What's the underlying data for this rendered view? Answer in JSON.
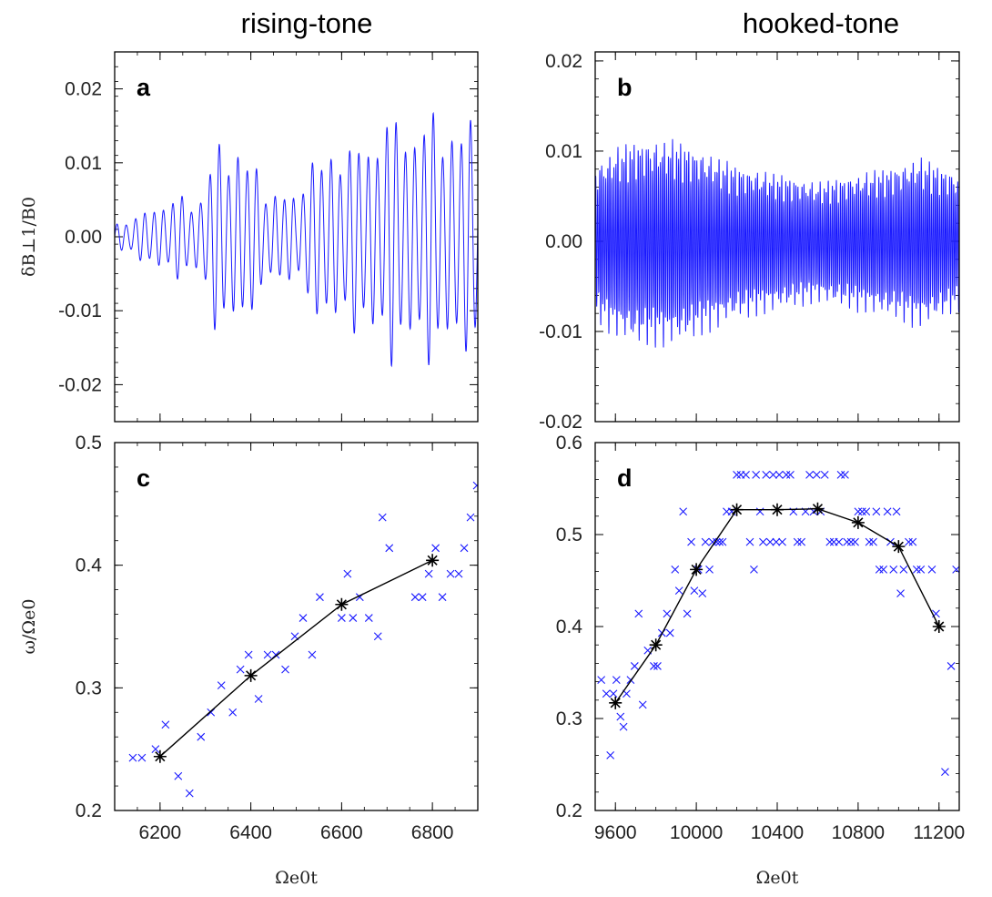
{
  "column_titles": [
    "rising-tone",
    "hooked-tone"
  ],
  "colors": {
    "series": "#1a1aff",
    "mean": "#000000"
  },
  "chart_data": [
    {
      "id": "a",
      "type": "line",
      "letter": "a",
      "column_title": "rising-tone",
      "xlim": [
        6100,
        6900
      ],
      "ylim": [
        -0.025,
        0.025
      ],
      "yticks": [
        -0.02,
        -0.01,
        0.0,
        0.01,
        0.02
      ],
      "ytick_labels": [
        "-0.02",
        "-0.01",
        "0.00",
        "0.01",
        "0.02"
      ],
      "ylabel": "δB⊥1/B0",
      "waveform_envelope": [
        [
          6100,
          0.002
        ],
        [
          6150,
          0.003
        ],
        [
          6200,
          0.005
        ],
        [
          6250,
          0.006
        ],
        [
          6270,
          0.005
        ],
        [
          6290,
          0.006
        ],
        [
          6320,
          0.013
        ],
        [
          6360,
          0.014
        ],
        [
          6400,
          0.011
        ],
        [
          6430,
          0.008
        ],
        [
          6460,
          0.006
        ],
        [
          6490,
          0.007
        ],
        [
          6500,
          0.004
        ],
        [
          6520,
          0.012
        ],
        [
          6560,
          0.011
        ],
        [
          6600,
          0.014
        ],
        [
          6650,
          0.013
        ],
        [
          6700,
          0.018
        ],
        [
          6750,
          0.016
        ],
        [
          6800,
          0.018
        ],
        [
          6850,
          0.016
        ],
        [
          6900,
          0.017
        ]
      ],
      "waveform_period": 20.5
    },
    {
      "id": "b",
      "type": "line",
      "letter": "b",
      "column_title": "hooked-tone",
      "xlim": [
        9500,
        11300
      ],
      "ylim": [
        -0.02,
        0.021
      ],
      "yticks": [
        -0.02,
        -0.01,
        0.0,
        0.01,
        0.02
      ],
      "ytick_labels": [
        "-0.02",
        "-0.01",
        "0.00",
        "0.01",
        "0.02"
      ],
      "ylabel": "",
      "waveform_envelope": [
        [
          9500,
          0.009
        ],
        [
          9600,
          0.011
        ],
        [
          9700,
          0.012
        ],
        [
          9800,
          0.012
        ],
        [
          9900,
          0.012
        ],
        [
          10000,
          0.011
        ],
        [
          10200,
          0.009
        ],
        [
          10400,
          0.008
        ],
        [
          10600,
          0.007
        ],
        [
          10800,
          0.008
        ],
        [
          11000,
          0.009
        ],
        [
          11100,
          0.01
        ],
        [
          11200,
          0.009
        ],
        [
          11300,
          0.008
        ]
      ],
      "waveform_period": 10
    },
    {
      "id": "c",
      "type": "scatter",
      "letter": "c",
      "xlim": [
        6100,
        6900
      ],
      "ylim": [
        0.2,
        0.5
      ],
      "xticks": [
        6200,
        6400,
        6600,
        6800
      ],
      "xtick_labels": [
        "6200",
        "6400",
        "6600",
        "6800"
      ],
      "yticks": [
        0.2,
        0.3,
        0.4,
        0.5
      ],
      "ytick_labels": [
        "0.2",
        "0.3",
        "0.4",
        "0.5"
      ],
      "xlabel": "Ωe0t",
      "ylabel": "ω/Ωe0",
      "scatter_points": [
        [
          6140,
          0.243
        ],
        [
          6160,
          0.243
        ],
        [
          6190,
          0.25
        ],
        [
          6212,
          0.27
        ],
        [
          6240,
          0.228
        ],
        [
          6265,
          0.214
        ],
        [
          6290,
          0.26
        ],
        [
          6312,
          0.28
        ],
        [
          6335,
          0.302
        ],
        [
          6360,
          0.28
        ],
        [
          6377,
          0.315
        ],
        [
          6395,
          0.327
        ],
        [
          6417,
          0.291
        ],
        [
          6437,
          0.327
        ],
        [
          6455,
          0.327
        ],
        [
          6476,
          0.315
        ],
        [
          6497,
          0.342
        ],
        [
          6515,
          0.357
        ],
        [
          6535,
          0.327
        ],
        [
          6552,
          0.374
        ],
        [
          6600,
          0.357
        ],
        [
          6613,
          0.393
        ],
        [
          6625,
          0.357
        ],
        [
          6640,
          0.374
        ],
        [
          6660,
          0.357
        ],
        [
          6680,
          0.342
        ],
        [
          6690,
          0.439
        ],
        [
          6705,
          0.414
        ],
        [
          6762,
          0.374
        ],
        [
          6778,
          0.374
        ],
        [
          6792,
          0.393
        ],
        [
          6807,
          0.414
        ],
        [
          6822,
          0.374
        ],
        [
          6840,
          0.393
        ],
        [
          6858,
          0.393
        ],
        [
          6870,
          0.414
        ],
        [
          6884,
          0.439
        ],
        [
          6898,
          0.465
        ]
      ],
      "mean_points": [
        [
          6200,
          0.244
        ],
        [
          6400,
          0.31
        ],
        [
          6600,
          0.368
        ],
        [
          6800,
          0.404
        ]
      ]
    },
    {
      "id": "d",
      "type": "scatter",
      "letter": "d",
      "xlim": [
        9500,
        11300
      ],
      "ylim": [
        0.2,
        0.6
      ],
      "xticks": [
        9600,
        10000,
        10400,
        10800,
        11200
      ],
      "xtick_labels": [
        "9600",
        "10000",
        "10400",
        "10800",
        "11200"
      ],
      "yticks": [
        0.2,
        0.3,
        0.4,
        0.5,
        0.6
      ],
      "ytick_labels": [
        "0.2",
        "0.3",
        "0.4",
        "0.5",
        "0.6"
      ],
      "xlabel": "Ωe0t",
      "ylabel": "",
      "scatter_points": [
        [
          9530,
          0.342
        ],
        [
          9555,
          0.327
        ],
        [
          9575,
          0.26
        ],
        [
          9590,
          0.327
        ],
        [
          9605,
          0.342
        ],
        [
          9625,
          0.302
        ],
        [
          9640,
          0.291
        ],
        [
          9655,
          0.327
        ],
        [
          9675,
          0.342
        ],
        [
          9695,
          0.357
        ],
        [
          9715,
          0.414
        ],
        [
          9735,
          0.315
        ],
        [
          9760,
          0.374
        ],
        [
          9790,
          0.357
        ],
        [
          9808,
          0.357
        ],
        [
          9830,
          0.393
        ],
        [
          9855,
          0.414
        ],
        [
          9870,
          0.393
        ],
        [
          9895,
          0.462
        ],
        [
          9915,
          0.439
        ],
        [
          9935,
          0.525
        ],
        [
          9955,
          0.414
        ],
        [
          9975,
          0.492
        ],
        [
          9990,
          0.439
        ],
        [
          10010,
          0.462
        ],
        [
          10030,
          0.436
        ],
        [
          10045,
          0.492
        ],
        [
          10065,
          0.462
        ],
        [
          10080,
          0.492
        ],
        [
          10100,
          0.492
        ],
        [
          10115,
          0.492
        ],
        [
          10130,
          0.492
        ],
        [
          10150,
          0.525
        ],
        [
          10175,
          0.525
        ],
        [
          10200,
          0.565
        ],
        [
          10220,
          0.565
        ],
        [
          10245,
          0.565
        ],
        [
          10265,
          0.492
        ],
        [
          10285,
          0.462
        ],
        [
          10295,
          0.565
        ],
        [
          10315,
          0.525
        ],
        [
          10330,
          0.492
        ],
        [
          10345,
          0.565
        ],
        [
          10365,
          0.492
        ],
        [
          10380,
          0.565
        ],
        [
          10395,
          0.492
        ],
        [
          10410,
          0.565
        ],
        [
          10425,
          0.492
        ],
        [
          10445,
          0.565
        ],
        [
          10465,
          0.565
        ],
        [
          10480,
          0.525
        ],
        [
          10500,
          0.492
        ],
        [
          10520,
          0.492
        ],
        [
          10540,
          0.525
        ],
        [
          10560,
          0.565
        ],
        [
          10580,
          0.525
        ],
        [
          10595,
          0.565
        ],
        [
          10615,
          0.525
        ],
        [
          10635,
          0.565
        ],
        [
          10660,
          0.492
        ],
        [
          10680,
          0.492
        ],
        [
          10705,
          0.492
        ],
        [
          10715,
          0.565
        ],
        [
          10735,
          0.565
        ],
        [
          10745,
          0.492
        ],
        [
          10765,
          0.492
        ],
        [
          10785,
          0.492
        ],
        [
          10800,
          0.525
        ],
        [
          10820,
          0.525
        ],
        [
          10840,
          0.525
        ],
        [
          10855,
          0.492
        ],
        [
          10875,
          0.492
        ],
        [
          10890,
          0.525
        ],
        [
          10905,
          0.462
        ],
        [
          10925,
          0.462
        ],
        [
          10945,
          0.525
        ],
        [
          10960,
          0.492
        ],
        [
          10975,
          0.462
        ],
        [
          10990,
          0.525
        ],
        [
          11010,
          0.436
        ],
        [
          11025,
          0.462
        ],
        [
          11050,
          0.492
        ],
        [
          11070,
          0.492
        ],
        [
          11090,
          0.462
        ],
        [
          11110,
          0.462
        ],
        [
          11165,
          0.462
        ],
        [
          11185,
          0.414
        ],
        [
          11230,
          0.242
        ],
        [
          11260,
          0.357
        ],
        [
          11285,
          0.462
        ]
      ],
      "mean_points": [
        [
          9600,
          0.317
        ],
        [
          9800,
          0.38
        ],
        [
          10000,
          0.462
        ],
        [
          10200,
          0.527
        ],
        [
          10400,
          0.527
        ],
        [
          10600,
          0.528
        ],
        [
          10800,
          0.513
        ],
        [
          11000,
          0.487
        ],
        [
          11200,
          0.4
        ]
      ]
    }
  ]
}
